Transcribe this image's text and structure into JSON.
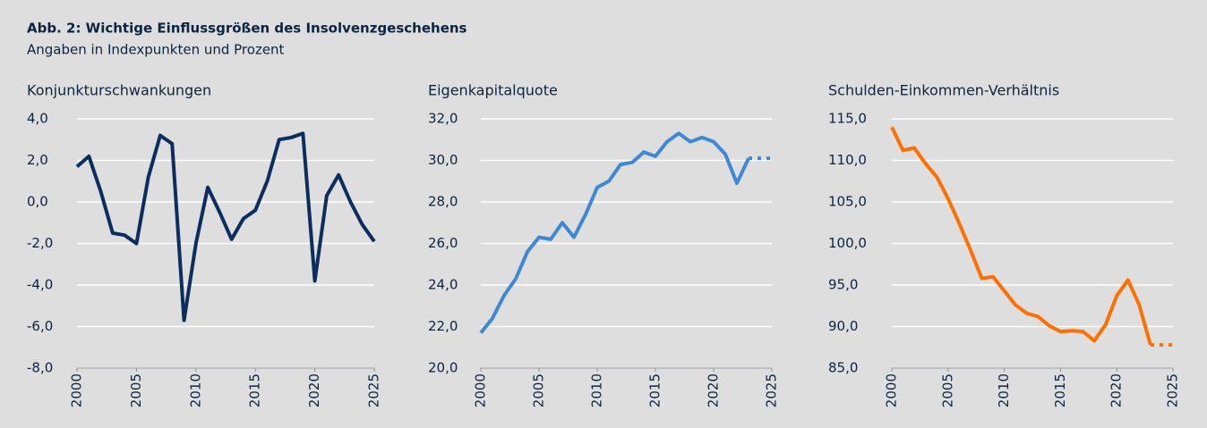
{
  "header": {
    "title": "Abb. 2: Wichtige Einflussgrößen des Insolvenzgeschehens",
    "subtitle": "Angaben in Indexpunkten und Prozent"
  },
  "chart_data": [
    {
      "type": "line",
      "title": "Konjunkturschwankungen",
      "x": [
        2000,
        2001,
        2002,
        2003,
        2004,
        2005,
        2006,
        2007,
        2008,
        2009,
        2010,
        2011,
        2012,
        2013,
        2014,
        2015,
        2016,
        2017,
        2018,
        2019,
        2020,
        2021,
        2022,
        2023,
        2024,
        2025
      ],
      "series": [
        {
          "color": "#0b2d5f",
          "style": "solid",
          "values": [
            1.7,
            2.2,
            0.5,
            -1.5,
            -1.6,
            -2.0,
            1.2,
            3.2,
            2.8,
            -5.7,
            -2.0,
            0.7,
            -0.5,
            -1.8,
            -0.8,
            -0.4,
            1.0,
            3.0,
            3.1,
            3.3,
            -3.8,
            0.3,
            1.3,
            0.0,
            -1.1,
            -1.9
          ]
        }
      ],
      "xlim": [
        2000,
        2025
      ],
      "xticks": [
        2000,
        2005,
        2010,
        2015,
        2020,
        2025
      ],
      "ylim": [
        -8,
        4
      ],
      "yticks": [
        {
          "value": -8,
          "label": "-8,0"
        },
        {
          "value": -6,
          "label": "-6,0"
        },
        {
          "value": -4,
          "label": "-4,0"
        },
        {
          "value": -2,
          "label": "-2,0"
        },
        {
          "value": 0,
          "label": "0,0"
        },
        {
          "value": 2,
          "label": "2,0"
        },
        {
          "value": 4,
          "label": "4,0"
        }
      ],
      "grid": true
    },
    {
      "type": "line",
      "title": "Eigenkapitalquote",
      "x": [
        2000,
        2001,
        2002,
        2003,
        2004,
        2005,
        2006,
        2007,
        2008,
        2009,
        2010,
        2011,
        2012,
        2013,
        2014,
        2015,
        2016,
        2017,
        2018,
        2019,
        2020,
        2021,
        2022,
        2023,
        2024,
        2025
      ],
      "series": [
        {
          "color": "#3f88d6",
          "style": "solid",
          "values": [
            21.7,
            22.4,
            23.5,
            24.3,
            25.6,
            26.3,
            26.2,
            27.0,
            26.3,
            27.4,
            28.7,
            29.0,
            29.8,
            29.9,
            30.4,
            30.2,
            30.9,
            31.3,
            30.9,
            31.1,
            30.9,
            30.3,
            28.9,
            30.1,
            null,
            null
          ]
        },
        {
          "color": "#3f88d6",
          "style": "dotted",
          "values": [
            null,
            null,
            null,
            null,
            null,
            null,
            null,
            null,
            null,
            null,
            null,
            null,
            null,
            null,
            null,
            null,
            null,
            null,
            null,
            null,
            null,
            null,
            null,
            30.1,
            30.1,
            30.1
          ]
        }
      ],
      "xlim": [
        2000,
        2025
      ],
      "xticks": [
        2000,
        2005,
        2010,
        2015,
        2020,
        2025
      ],
      "ylim": [
        20,
        32
      ],
      "yticks": [
        {
          "value": 20,
          "label": "20,0"
        },
        {
          "value": 22,
          "label": "22,0"
        },
        {
          "value": 24,
          "label": "24,0"
        },
        {
          "value": 26,
          "label": "26,0"
        },
        {
          "value": 28,
          "label": "28,0"
        },
        {
          "value": 30,
          "label": "30,0"
        },
        {
          "value": 32,
          "label": "32,0"
        }
      ],
      "grid": true
    },
    {
      "type": "line",
      "title": "Schulden-Einkommen-Verhältnis",
      "x": [
        2000,
        2001,
        2002,
        2003,
        2004,
        2005,
        2006,
        2007,
        2008,
        2009,
        2010,
        2011,
        2012,
        2013,
        2014,
        2015,
        2016,
        2017,
        2018,
        2019,
        2020,
        2021,
        2022,
        2023,
        2024,
        2025
      ],
      "series": [
        {
          "color": "#ff7000",
          "style": "solid",
          "values": [
            114.0,
            111.2,
            111.5,
            109.6,
            108.0,
            105.4,
            102.4,
            99.2,
            95.8,
            96.0,
            94.3,
            92.6,
            91.6,
            91.2,
            90.1,
            89.4,
            89.5,
            89.4,
            88.3,
            90.2,
            93.7,
            95.6,
            92.6,
            87.8,
            null,
            null
          ]
        },
        {
          "color": "#ff7000",
          "style": "dotted",
          "values": [
            null,
            null,
            null,
            null,
            null,
            null,
            null,
            null,
            null,
            null,
            null,
            null,
            null,
            null,
            null,
            null,
            null,
            null,
            null,
            null,
            null,
            null,
            null,
            87.8,
            87.8,
            87.8
          ]
        }
      ],
      "xlim": [
        2000,
        2025
      ],
      "xticks": [
        2000,
        2005,
        2010,
        2015,
        2020,
        2025
      ],
      "ylim": [
        85,
        115
      ],
      "yticks": [
        {
          "value": 85,
          "label": "85,0"
        },
        {
          "value": 90,
          "label": "90,0"
        },
        {
          "value": 95,
          "label": "95,0"
        },
        {
          "value": 100,
          "label": "100,0"
        },
        {
          "value": 105,
          "label": "105,0"
        },
        {
          "value": 110,
          "label": "110,0"
        },
        {
          "value": 115,
          "label": "115,0"
        }
      ],
      "grid": true
    }
  ]
}
